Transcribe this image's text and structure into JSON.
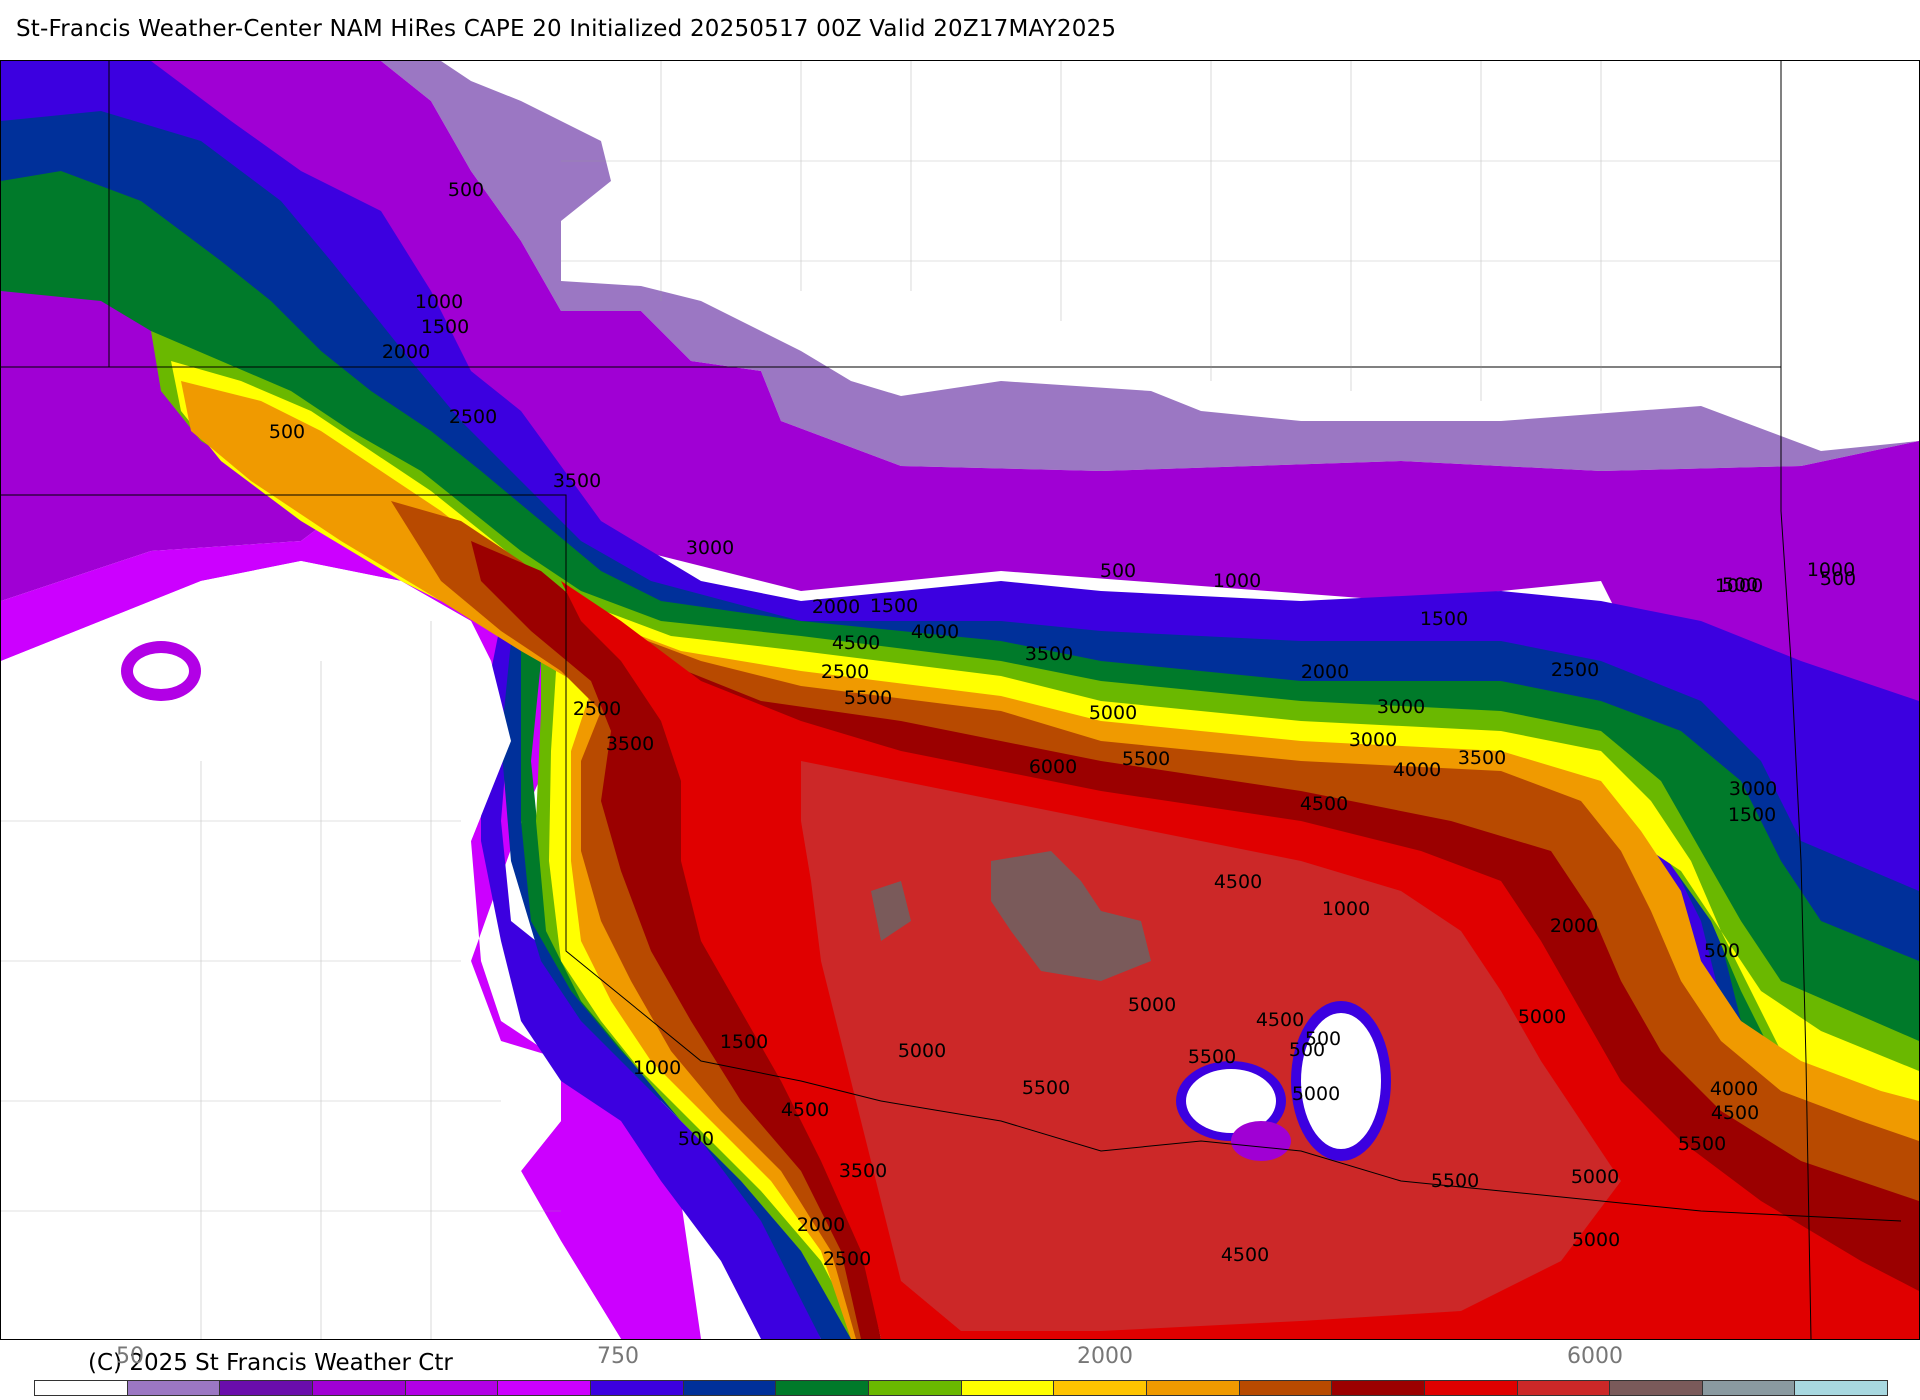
{
  "title": "St-Francis Weather-Center NAM HiRes CAPE  20 Initialized 20250517 00Z Valid 20Z17MAY2025",
  "copyright": "(C) 2025 St Francis Weather Ctr",
  "colorbar": {
    "scale_labels": [
      "50",
      "750",
      "2000",
      "6000"
    ],
    "colors": [
      "#ffffff",
      "#9b77c3",
      "#6a0dab",
      "#a000d4",
      "#b200e6",
      "#cc00ff",
      "#3c00e0",
      "#00309a",
      "#007a2a",
      "#6ab800",
      "#ffff00",
      "#ffc400",
      "#f09a00",
      "#b84a00",
      "#9b0000",
      "#e00000",
      "#cc2828",
      "#7a5a5a",
      "#8a9aa0",
      "#a8d8e0"
    ]
  },
  "contour_labels": [
    "500",
    "1000",
    "1500",
    "2000",
    "500",
    "2500",
    "3500",
    "3000",
    "2000",
    "1500",
    "4000",
    "4500",
    "3500",
    "5500",
    "5000",
    "6000",
    "5500",
    "4500",
    "4500",
    "1000",
    "5000",
    "4500",
    "5500",
    "500",
    "5000",
    "5000",
    "5500",
    "4500",
    "1500",
    "1000",
    "500",
    "3500",
    "2000",
    "2500",
    "2500",
    "3500",
    "2500",
    "2000",
    "3000",
    "3000",
    "4000",
    "3500",
    "2500",
    "2000",
    "3000",
    "1500",
    "500",
    "1000",
    "500",
    "1000",
    "500",
    "1500",
    "500",
    "1000",
    "5000",
    "4000",
    "4500",
    "5500",
    "5000",
    "5500",
    "5000",
    "4500",
    "500"
  ]
}
